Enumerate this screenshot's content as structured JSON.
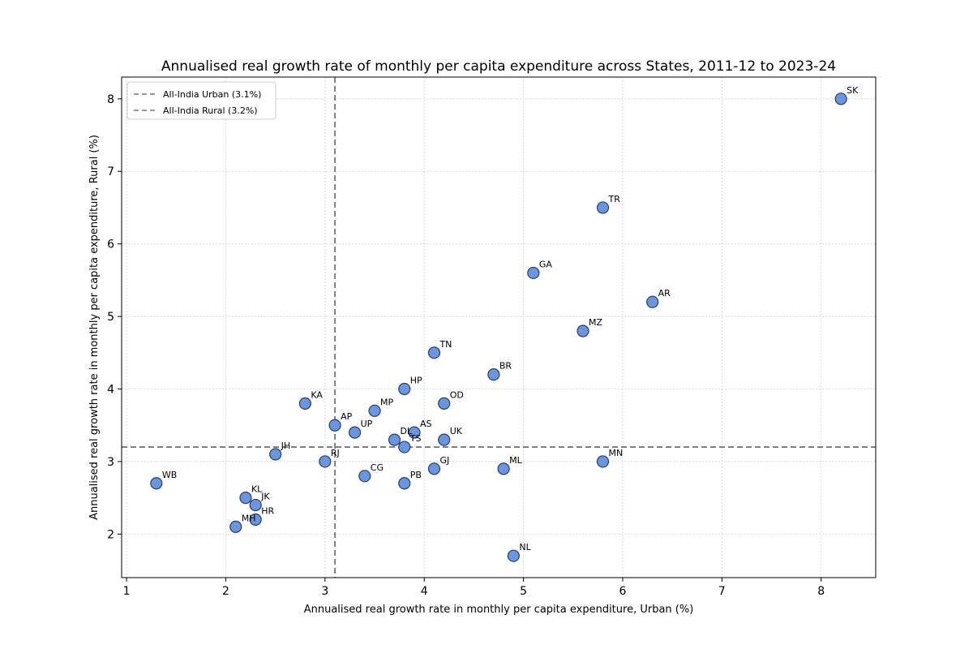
{
  "chart_data": {
    "type": "scatter",
    "title": "Annualised real growth rate of monthly per capita expenditure across States, 2011-12 to 2023-24",
    "xlabel": "Annualised real growth rate in monthly per capita expenditure, Urban (%)",
    "ylabel": "Annualised real growth rate in monthly per capita expenditure, Rural (%)",
    "xlim": [
      0.95,
      8.55
    ],
    "ylim": [
      1.4,
      8.3
    ],
    "xticks": [
      1,
      2,
      3,
      4,
      5,
      6,
      7,
      8
    ],
    "yticks": [
      2,
      3,
      4,
      5,
      6,
      7,
      8
    ],
    "grid": true,
    "legend_position": "top-left",
    "reference_lines": [
      {
        "orientation": "vertical",
        "value": 3.1,
        "label": "All-India Urban (3.1%)"
      },
      {
        "orientation": "horizontal",
        "value": 3.2,
        "label": "All-India Rural (3.2%)"
      }
    ],
    "points": [
      {
        "label": "SK",
        "x": 8.2,
        "y": 8.0
      },
      {
        "label": "TR",
        "x": 5.8,
        "y": 6.5
      },
      {
        "label": "GA",
        "x": 5.1,
        "y": 5.6
      },
      {
        "label": "AR",
        "x": 6.3,
        "y": 5.2
      },
      {
        "label": "MZ",
        "x": 5.6,
        "y": 4.8
      },
      {
        "label": "TN",
        "x": 4.1,
        "y": 4.5
      },
      {
        "label": "BR",
        "x": 4.7,
        "y": 4.2
      },
      {
        "label": "HP",
        "x": 3.8,
        "y": 4.0
      },
      {
        "label": "KA",
        "x": 2.8,
        "y": 3.8
      },
      {
        "label": "OD",
        "x": 4.2,
        "y": 3.8
      },
      {
        "label": "MP",
        "x": 3.5,
        "y": 3.7
      },
      {
        "label": "AP",
        "x": 3.1,
        "y": 3.5
      },
      {
        "label": "UP",
        "x": 3.3,
        "y": 3.4
      },
      {
        "label": "AS",
        "x": 3.9,
        "y": 3.4
      },
      {
        "label": "DL",
        "x": 3.7,
        "y": 3.3
      },
      {
        "label": "UK",
        "x": 4.2,
        "y": 3.3
      },
      {
        "label": "TS",
        "x": 3.8,
        "y": 3.2
      },
      {
        "label": "JH",
        "x": 2.5,
        "y": 3.1
      },
      {
        "label": "RJ",
        "x": 3.0,
        "y": 3.0
      },
      {
        "label": "MN",
        "x": 5.8,
        "y": 3.0
      },
      {
        "label": "GJ",
        "x": 4.1,
        "y": 2.9
      },
      {
        "label": "ML",
        "x": 4.8,
        "y": 2.9
      },
      {
        "label": "CG",
        "x": 3.4,
        "y": 2.8
      },
      {
        "label": "WB",
        "x": 1.3,
        "y": 2.7
      },
      {
        "label": "PB",
        "x": 3.8,
        "y": 2.7
      },
      {
        "label": "KL",
        "x": 2.2,
        "y": 2.5
      },
      {
        "label": "JK",
        "x": 2.3,
        "y": 2.4
      },
      {
        "label": "HR",
        "x": 2.3,
        "y": 2.2
      },
      {
        "label": "MH",
        "x": 2.1,
        "y": 2.1
      },
      {
        "label": "NL",
        "x": 4.9,
        "y": 1.7
      }
    ]
  },
  "colors": {
    "point_fill": "#6a95df",
    "point_stroke": "#2c3e66",
    "reference_line": "#777777",
    "grid": "#d0d0d0"
  }
}
